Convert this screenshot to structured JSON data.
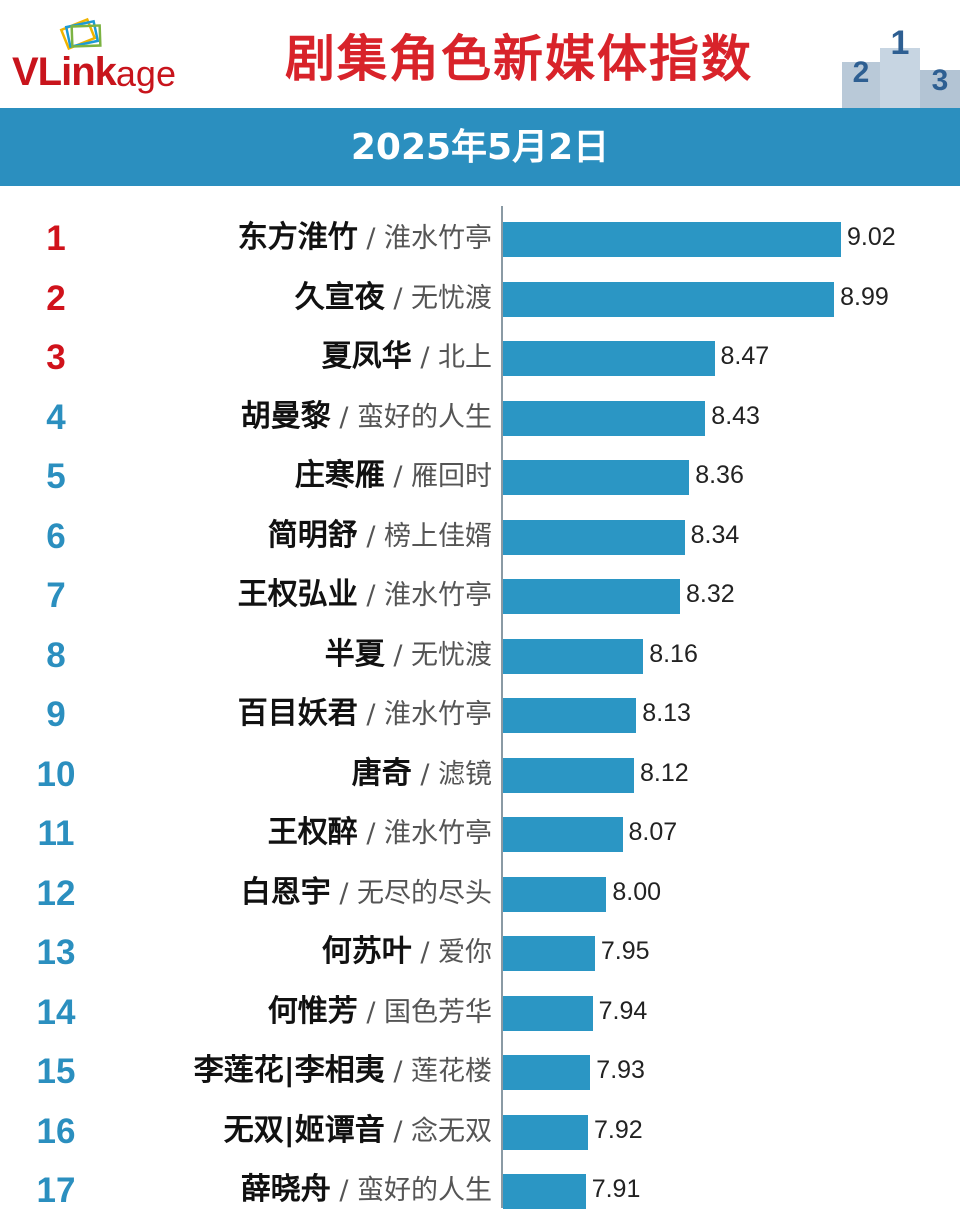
{
  "brand": {
    "logo_main": "VLink",
    "logo_tail": "age"
  },
  "title": "剧集角色新媒体指数",
  "date": "2025年5月2日",
  "colors": {
    "header_band": "#2b8fbf",
    "bar": "#2b96c4",
    "title": "#d8232a",
    "rank_top3": "#d0121b",
    "rank_rest": "#2b8fbf"
  },
  "chart_data": {
    "type": "bar",
    "orientation": "horizontal",
    "title": "剧集角色新媒体指数",
    "subtitle": "2025年5月2日",
    "xlim": [
      0,
      9.02
    ],
    "rows": [
      {
        "rank": "1",
        "name": "东方淮竹",
        "show": "淮水竹亭",
        "value": 9.02,
        "value_label": "9.02"
      },
      {
        "rank": "2",
        "name": "久宣夜",
        "show": "无忧渡",
        "value": 8.99,
        "value_label": "8.99"
      },
      {
        "rank": "3",
        "name": "夏凤华",
        "show": "北上",
        "value": 8.47,
        "value_label": "8.47"
      },
      {
        "rank": "4",
        "name": "胡曼黎",
        "show": "蛮好的人生",
        "value": 8.43,
        "value_label": "8.43"
      },
      {
        "rank": "5",
        "name": "庄寒雁",
        "show": "雁回时",
        "value": 8.36,
        "value_label": "8.36"
      },
      {
        "rank": "6",
        "name": "简明舒",
        "show": "榜上佳婿",
        "value": 8.34,
        "value_label": "8.34"
      },
      {
        "rank": "7",
        "name": "王权弘业",
        "show": "淮水竹亭",
        "value": 8.32,
        "value_label": "8.32"
      },
      {
        "rank": "8",
        "name": "半夏",
        "show": "无忧渡",
        "value": 8.16,
        "value_label": "8.16"
      },
      {
        "rank": "9",
        "name": "百目妖君",
        "show": "淮水竹亭",
        "value": 8.13,
        "value_label": "8.13"
      },
      {
        "rank": "10",
        "name": "唐奇",
        "show": "滤镜",
        "value": 8.12,
        "value_label": "8.12"
      },
      {
        "rank": "11",
        "name": "王权醉",
        "show": "淮水竹亭",
        "value": 8.07,
        "value_label": "8.07"
      },
      {
        "rank": "12",
        "name": "白恩宇",
        "show": "无尽的尽头",
        "value": 8.0,
        "value_label": "8.00"
      },
      {
        "rank": "13",
        "name": "何苏叶",
        "show": "爱你",
        "value": 7.95,
        "value_label": "7.95"
      },
      {
        "rank": "14",
        "name": "何惟芳",
        "show": "国色芳华",
        "value": 7.94,
        "value_label": "7.94"
      },
      {
        "rank": "15",
        "name": "李莲花|李相夷",
        "show": "莲花楼",
        "value": 7.93,
        "value_label": "7.93"
      },
      {
        "rank": "16",
        "name": "无双|姬谭音",
        "show": "念无双",
        "value": 7.92,
        "value_label": "7.92"
      },
      {
        "rank": "17",
        "name": "薛晓舟",
        "show": "蛮好的人生",
        "value": 7.91,
        "value_label": "7.91"
      }
    ]
  }
}
